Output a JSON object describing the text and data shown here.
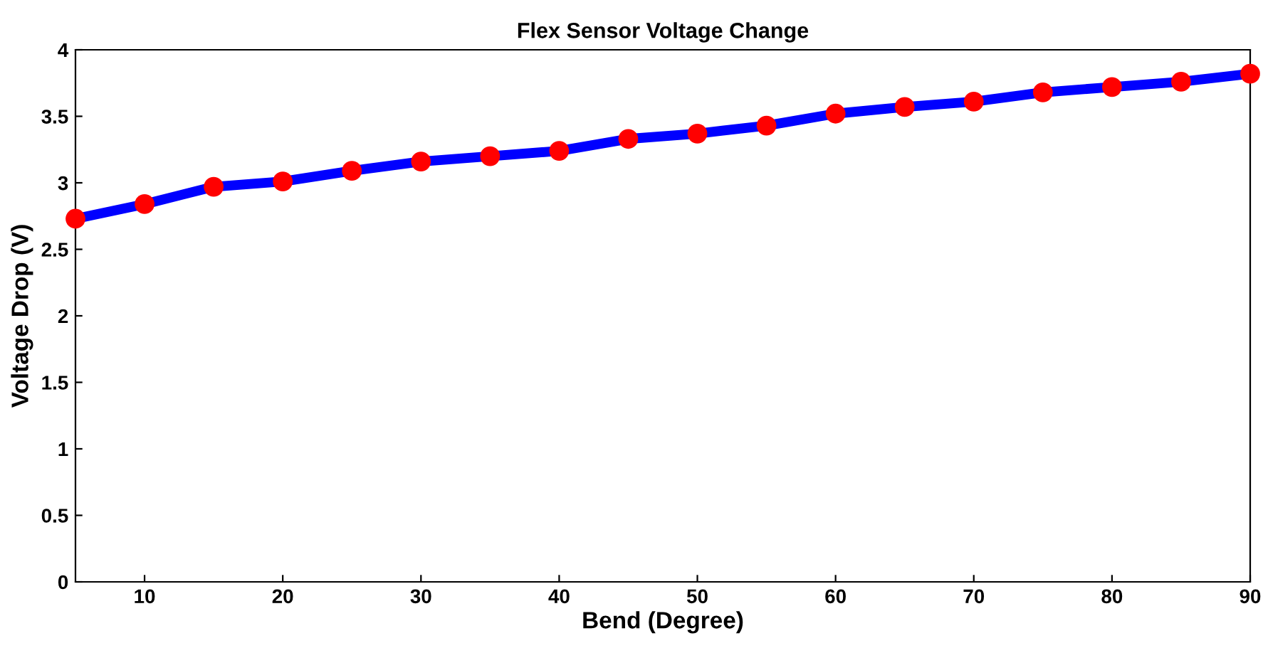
{
  "chart_data": {
    "type": "line",
    "title": "Flex Sensor Voltage Change",
    "xlabel": "Bend (Degree)",
    "ylabel": "Voltage Drop (V)",
    "x": [
      5,
      10,
      15,
      20,
      25,
      30,
      35,
      40,
      45,
      50,
      55,
      60,
      65,
      70,
      75,
      80,
      85,
      90
    ],
    "series": [
      {
        "color": "#0000ff",
        "colors": [
          "#ff0000",
          "#ff0000",
          "#ff0000",
          "#ff0000",
          "#ff0000",
          "#ff0000",
          "#ff0000",
          "#ff0000",
          "#ff0000",
          "#ff0000",
          "#ff0000",
          "#ff0000",
          "#ff0000",
          "#ff0000",
          "#ff0000",
          "#ff0000",
          "#ff0000",
          "#ff0000"
        ],
        "values": [
          2.73,
          2.84,
          2.97,
          3.01,
          3.09,
          3.16,
          3.2,
          3.24,
          3.33,
          3.37,
          3.43,
          3.52,
          3.57,
          3.61,
          3.68,
          3.72,
          3.76,
          3.82
        ]
      }
    ],
    "xlim": [
      5,
      90
    ],
    "xticks": [
      10,
      20,
      30,
      40,
      50,
      60,
      70,
      80,
      90
    ],
    "ylim": [
      0,
      4
    ],
    "yticks": [
      0,
      0.5,
      1,
      1.5,
      2,
      2.5,
      3,
      3.5,
      4
    ],
    "marker": "circle",
    "line_style": "solid",
    "grid": false,
    "legend": false
  }
}
